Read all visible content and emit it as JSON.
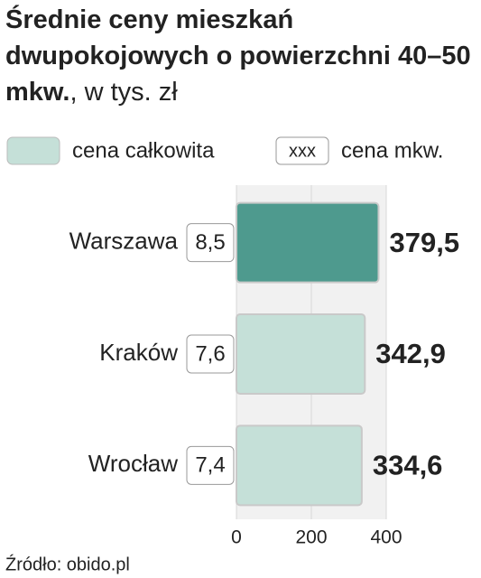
{
  "chart_data": {
    "type": "bar",
    "orientation": "horizontal",
    "title": "Średnie ceny mieszkań dwupokojowych o powierzchni 40–50 mkw.",
    "subtitle": ", w tys. zł",
    "categories": [
      "Warszawa",
      "Kraków",
      "Wrocław"
    ],
    "series": [
      {
        "name": "cena całkowita",
        "color": "#c5e0d8",
        "colors": [
          "#4e9a8e",
          "#c5e0d8",
          "#c5e0d8"
        ],
        "values": [
          379.5,
          342.9,
          334.6
        ],
        "value_labels": [
          "379,5",
          "342,9",
          "334,6"
        ]
      },
      {
        "name": "cena mkw.",
        "legend_sample": "xxx",
        "values": [
          8.5,
          7.6,
          7.4
        ],
        "value_labels": [
          "8,5",
          "7,6",
          "7,4"
        ]
      }
    ],
    "xlim": [
      0,
      400
    ],
    "xticks": [
      0,
      200,
      400
    ],
    "grid": true,
    "source": "Źródło: obido.pl"
  }
}
